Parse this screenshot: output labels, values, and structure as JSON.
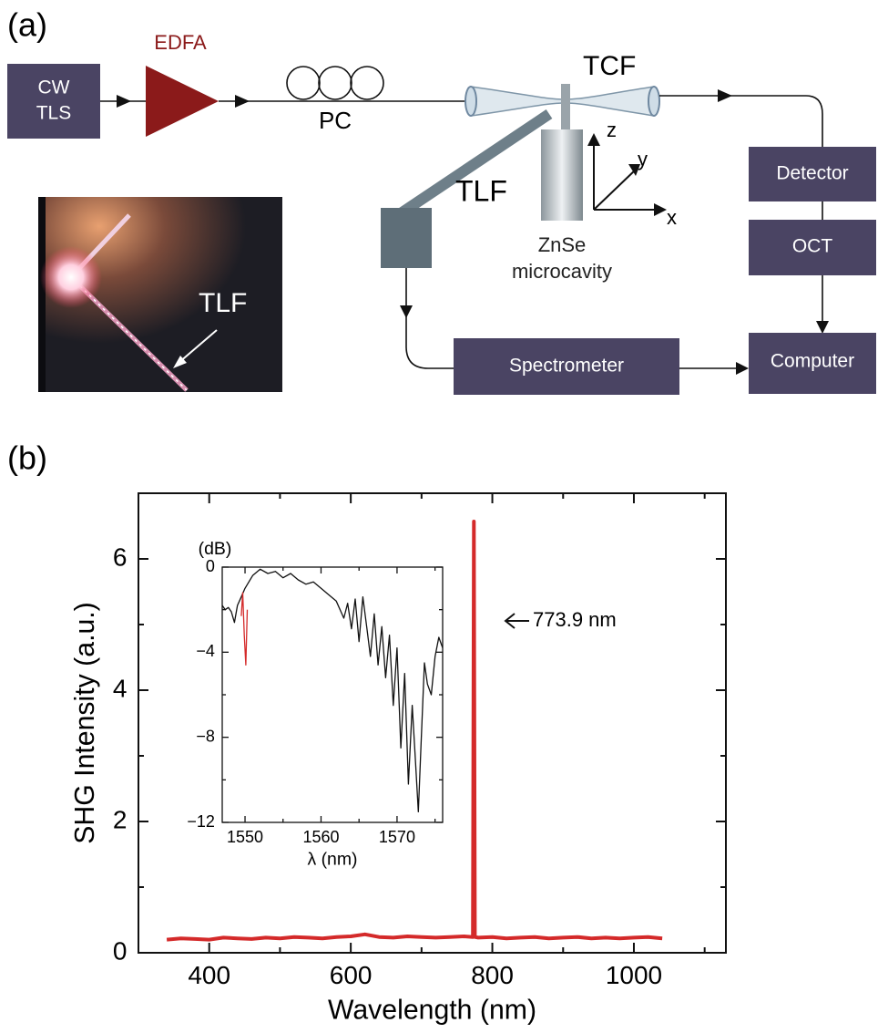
{
  "panels": {
    "a": "(a)",
    "b": "(b)"
  },
  "diagram": {
    "source": [
      "CW",
      "TLS"
    ],
    "amplifier": "EDFA",
    "polarization": "PC",
    "coupling_fiber": "TCF",
    "loop_fiber": "TLF",
    "cavity": [
      "ZnSe",
      "microcavity"
    ],
    "axes": {
      "x": "x",
      "y": "y",
      "z": "z"
    },
    "detector": "Detector",
    "oct": "OCT",
    "computer": "Computer",
    "spectrometer": "Spectrometer",
    "photo_label": "TLF"
  },
  "chart_data": [
    {
      "type": "line",
      "x_label": "Wavelength (nm)",
      "y_label": "SHG Intensity (a.u.)",
      "xlim": [
        300,
        1130
      ],
      "ylim": [
        0,
        7
      ],
      "xticks": [
        400,
        600,
        800,
        1000
      ],
      "xminorticks": [
        300,
        500,
        700,
        900,
        1100
      ],
      "yticks": [
        0,
        2,
        4,
        6
      ],
      "yminorticks": [
        1,
        3,
        5
      ],
      "annotation": "773.9 nm",
      "series": [
        {
          "color": "#d42a2a",
          "x": [
            340,
            360,
            380,
            400,
            420,
            440,
            460,
            480,
            500,
            520,
            540,
            560,
            580,
            600,
            620,
            640,
            660,
            680,
            700,
            720,
            740,
            760,
            772.5,
            773.9,
            775.3,
            780,
            800,
            820,
            840,
            860,
            880,
            900,
            920,
            940,
            960,
            980,
            1000,
            1020,
            1040
          ],
          "values": [
            0.2,
            0.22,
            0.21,
            0.2,
            0.23,
            0.22,
            0.21,
            0.23,
            0.22,
            0.24,
            0.23,
            0.22,
            0.24,
            0.25,
            0.28,
            0.24,
            0.23,
            0.25,
            0.24,
            0.23,
            0.24,
            0.25,
            0.24,
            6.57,
            0.24,
            0.23,
            0.24,
            0.22,
            0.23,
            0.24,
            0.22,
            0.23,
            0.24,
            0.22,
            0.23,
            0.22,
            0.23,
            0.24,
            0.22
          ]
        }
      ]
    },
    {
      "type": "line",
      "x_label": "λ (nm)",
      "y_label": "(dB)",
      "xlim": [
        1547,
        1576
      ],
      "ylim": [
        -12,
        0
      ],
      "xticks": [
        1550,
        1560,
        1570
      ],
      "xminorticks": [
        1555,
        1565,
        1575
      ],
      "yticks": [
        0,
        {
          "value": -4,
          "label": "−4"
        },
        {
          "value": -8,
          "label": "−8"
        },
        {
          "value": -12,
          "label": "−12"
        }
      ],
      "yminorticks": [
        -2,
        -6,
        -10
      ],
      "series": [
        {
          "color": "#111111",
          "x": [
            1547,
            1547.4,
            1547.8,
            1548.2,
            1548.6,
            1549,
            1549.5,
            1550,
            1551,
            1552,
            1553,
            1554,
            1555,
            1556,
            1557,
            1558,
            1559,
            1560,
            1561,
            1562,
            1563,
            1563.5,
            1564,
            1564.5,
            1565,
            1565.5,
            1566,
            1566.5,
            1567,
            1567.5,
            1568,
            1568.5,
            1569,
            1569.5,
            1570,
            1570.5,
            1571,
            1571.5,
            1572,
            1572.4,
            1572.8,
            1573.2,
            1573.6,
            1574,
            1574.5,
            1575,
            1575.5,
            1576
          ],
          "values": [
            -1.8,
            -2,
            -1.9,
            -2.1,
            -2.6,
            -1.8,
            -1.4,
            -1.0,
            -0.4,
            -0.1,
            -0.3,
            -0.2,
            -0.5,
            -0.3,
            -0.6,
            -0.8,
            -0.7,
            -1.0,
            -1.3,
            -1.6,
            -2.4,
            -1.7,
            -2.9,
            -1.5,
            -3.5,
            -1.4,
            -2.8,
            -4.2,
            -2.2,
            -4.6,
            -2.8,
            -5.2,
            -3.2,
            -6.5,
            -3.8,
            -8.5,
            -5,
            -10.2,
            -6.5,
            -9,
            -11.5,
            -8,
            -4.5,
            -5.5,
            -6,
            -4.2,
            -3.3,
            -3.8
          ]
        },
        {
          "color": "#d42a2a",
          "x": [
            1549.5,
            1549.7,
            1549.9,
            1550.1,
            1550.3
          ],
          "values": [
            -2.3,
            -1.2,
            -3.2,
            -4.6,
            -2.0
          ]
        }
      ]
    }
  ]
}
